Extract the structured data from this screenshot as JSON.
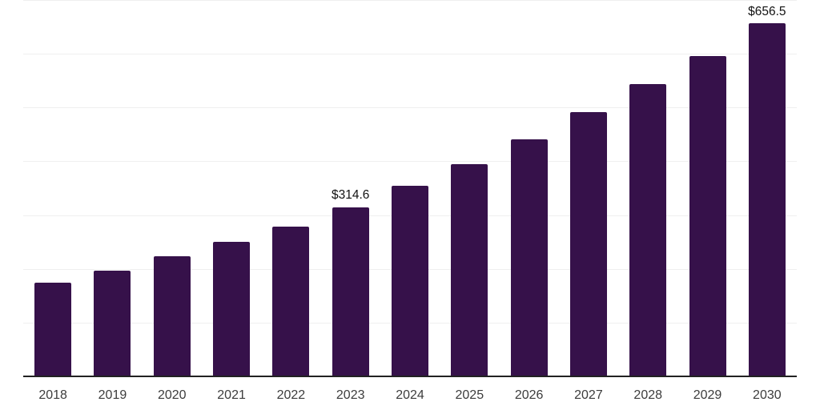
{
  "chart_data": {
    "type": "bar",
    "title": "",
    "xlabel": "",
    "ylabel": "",
    "categories": [
      "2018",
      "2019",
      "2020",
      "2021",
      "2022",
      "2023",
      "2024",
      "2025",
      "2026",
      "2027",
      "2028",
      "2029",
      "2030"
    ],
    "values": [
      175,
      197,
      224,
      250,
      279,
      314.6,
      354,
      395,
      441,
      492,
      543,
      596,
      656.5
    ],
    "data_labels": [
      null,
      null,
      null,
      null,
      null,
      "$314.6",
      null,
      null,
      null,
      null,
      null,
      null,
      "$656.5"
    ],
    "ylim": [
      0,
      700
    ],
    "grid": {
      "show": true,
      "axis": "y",
      "interval": 100
    },
    "y_tick_labels_visible": false,
    "legend_position": "none",
    "colors": {
      "bar": "#36114A",
      "gridline": "#efefef",
      "axis_line": "#222222",
      "tick_label": "#3c3c3c",
      "data_label": "#121212",
      "background": "#ffffff"
    }
  }
}
